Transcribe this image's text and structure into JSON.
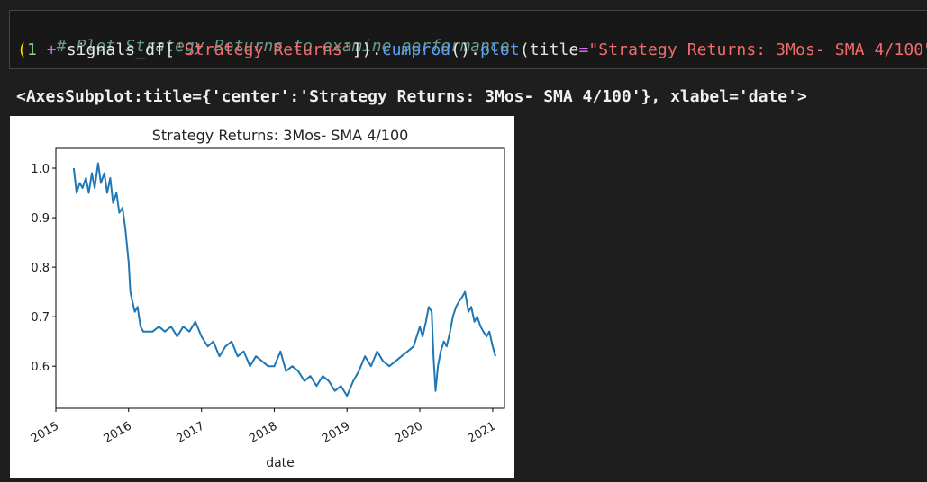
{
  "cell": {
    "comment": "# Plot Strategy Returns to examine performance",
    "code": {
      "open_paren": "(",
      "one": "1",
      "plus": " + ",
      "var": "signals_df",
      "lbracket": "[",
      "key": "'Strategy Returns'",
      "rbracket_close": "])",
      "dot1": ".",
      "cumprod": "cumprod",
      "call1": "()",
      "dot2": ".",
      "plot": "plot",
      "open2": "(",
      "kw": "title",
      "eq": "=",
      "title_str": "\"Strategy Returns: 3Mos- SMA 4/100\"",
      "close2": ")"
    }
  },
  "output": {
    "repr": "<AxesSubplot:title={'center':'Strategy Returns: 3Mos- SMA 4/100'}, xlabel='date'>"
  },
  "colors": {
    "line": "#1f77b4",
    "background": "#1e1e1e"
  },
  "chart_data": {
    "type": "line",
    "title": "Strategy Returns: 3Mos- SMA 4/100",
    "xlabel": "date",
    "ylabel": "",
    "xlim": [
      "2015-01-01",
      "2021-03-01"
    ],
    "ylim": [
      0.515,
      1.04
    ],
    "xticks": [
      "2015",
      "2016",
      "2017",
      "2018",
      "2019",
      "2020",
      "2021"
    ],
    "yticks": [
      "0.6",
      "0.7",
      "0.8",
      "0.9",
      "1.0"
    ],
    "grid": false,
    "series": [
      {
        "x": [
          "2015-04-01",
          "2015-04-15",
          "2015-05-01",
          "2015-05-15",
          "2015-06-01",
          "2015-06-15",
          "2015-07-01",
          "2015-07-15",
          "2015-08-01",
          "2015-08-15",
          "2015-09-01",
          "2015-09-15",
          "2015-10-01",
          "2015-10-15",
          "2015-11-01",
          "2015-11-15",
          "2015-12-01",
          "2015-12-15",
          "2016-01-01",
          "2016-01-10",
          "2016-01-20",
          "2016-02-01",
          "2016-02-15",
          "2016-03-01",
          "2016-03-15",
          "2016-04-01",
          "2016-05-01",
          "2016-06-01",
          "2016-07-01",
          "2016-08-01",
          "2016-09-01",
          "2016-10-01",
          "2016-11-01",
          "2016-12-01",
          "2017-01-01",
          "2017-02-01",
          "2017-03-01",
          "2017-04-01",
          "2017-05-01",
          "2017-06-01",
          "2017-07-01",
          "2017-08-01",
          "2017-09-01",
          "2017-10-01",
          "2017-11-01",
          "2017-12-01",
          "2018-01-01",
          "2018-02-01",
          "2018-03-01",
          "2018-04-01",
          "2018-05-01",
          "2018-06-01",
          "2018-07-01",
          "2018-08-01",
          "2018-09-01",
          "2018-10-01",
          "2018-11-01",
          "2018-12-01",
          "2019-01-01",
          "2019-02-01",
          "2019-03-01",
          "2019-04-01",
          "2019-05-01",
          "2019-06-01",
          "2019-07-01",
          "2019-08-01",
          "2019-09-01",
          "2019-10-01",
          "2019-11-01",
          "2019-12-01",
          "2020-01-01",
          "2020-01-15",
          "2020-02-01",
          "2020-02-15",
          "2020-03-01",
          "2020-03-10",
          "2020-03-20",
          "2020-04-01",
          "2020-04-15",
          "2020-05-01",
          "2020-05-15",
          "2020-06-01",
          "2020-06-15",
          "2020-07-01",
          "2020-07-15",
          "2020-08-01",
          "2020-08-15",
          "2020-09-01",
          "2020-09-15",
          "2020-10-01",
          "2020-10-15",
          "2020-11-01",
          "2020-11-15",
          "2020-12-01",
          "2020-12-15",
          "2021-01-01",
          "2021-01-15"
        ],
        "y": [
          1.0,
          0.95,
          0.97,
          0.96,
          0.98,
          0.95,
          0.99,
          0.96,
          1.01,
          0.97,
          0.99,
          0.95,
          0.98,
          0.93,
          0.95,
          0.91,
          0.92,
          0.88,
          0.81,
          0.75,
          0.73,
          0.71,
          0.72,
          0.68,
          0.67,
          0.67,
          0.67,
          0.68,
          0.67,
          0.68,
          0.66,
          0.68,
          0.67,
          0.69,
          0.66,
          0.64,
          0.65,
          0.62,
          0.64,
          0.65,
          0.62,
          0.63,
          0.6,
          0.62,
          0.61,
          0.6,
          0.6,
          0.63,
          0.59,
          0.6,
          0.59,
          0.57,
          0.58,
          0.56,
          0.58,
          0.57,
          0.55,
          0.56,
          0.54,
          0.57,
          0.59,
          0.62,
          0.6,
          0.63,
          0.61,
          0.6,
          0.61,
          0.62,
          0.63,
          0.64,
          0.68,
          0.66,
          0.69,
          0.72,
          0.71,
          0.62,
          0.55,
          0.6,
          0.63,
          0.65,
          0.64,
          0.67,
          0.7,
          0.72,
          0.73,
          0.74,
          0.75,
          0.71,
          0.72,
          0.69,
          0.7,
          0.68,
          0.67,
          0.66,
          0.67,
          0.64,
          0.62
        ]
      }
    ]
  }
}
